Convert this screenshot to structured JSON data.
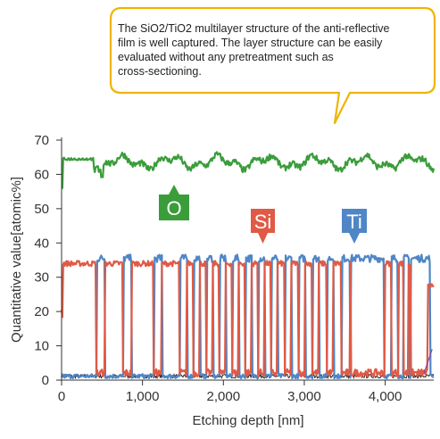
{
  "callout": {
    "lines": [
      "The SiO2/TiO2 multilayer structure of the anti-reflective",
      "film is well captured. The layer structure can be easily",
      "evaluated without any pretreatment such as",
      "cross-sectioning."
    ],
    "border_color": "#f0b400"
  },
  "chart_data": {
    "type": "line",
    "xlabel": "Etching depth [nm]",
    "ylabel": "Quantitative value[atomic%]",
    "xlim": [
      0,
      4600
    ],
    "ylim": [
      0,
      70
    ],
    "x_ticks": [
      0,
      1000,
      2000,
      3000,
      4000
    ],
    "x_tick_labels": [
      "0",
      "1,000",
      "2,000",
      "3,000",
      "4,000"
    ],
    "y_ticks": [
      0,
      10,
      20,
      30,
      40,
      50,
      60,
      70
    ],
    "y_tick_labels": [
      "0",
      "10",
      "20",
      "30",
      "40",
      "50",
      "60",
      "70"
    ],
    "grid": false,
    "series": [
      {
        "name": "O",
        "color": "#3a9d3a",
        "level": 63,
        "range": [
          55,
          68
        ]
      },
      {
        "name": "Si",
        "color": "#e05a45",
        "high": 34,
        "low": 1
      },
      {
        "name": "Ti",
        "color": "#4f86c6",
        "high": 35.5,
        "low": 0.5
      }
    ],
    "si_low_intervals_nm": [
      [
        430,
        530
      ],
      [
        760,
        860
      ],
      [
        1140,
        1230
      ],
      [
        1460,
        1540
      ],
      [
        1630,
        1700
      ],
      [
        1790,
        1860
      ],
      [
        1950,
        2020
      ],
      [
        2110,
        2180
      ],
      [
        2270,
        2340
      ],
      [
        2430,
        2500
      ],
      [
        2590,
        2660
      ],
      [
        2760,
        2830
      ],
      [
        2930,
        3000
      ],
      [
        3100,
        3170
      ],
      [
        3280,
        3350
      ],
      [
        3460,
        3560
      ],
      [
        3580,
        3990
      ],
      [
        4080,
        4160
      ],
      [
        4230,
        4280
      ],
      [
        4320,
        4550
      ]
    ],
    "ti_high_intervals_nm": [
      [
        440,
        530
      ],
      [
        770,
        860
      ],
      [
        1150,
        1240
      ],
      [
        1470,
        1550
      ],
      [
        1640,
        1710
      ],
      [
        1800,
        1870
      ],
      [
        1960,
        2030
      ],
      [
        2120,
        2190
      ],
      [
        2280,
        2350
      ],
      [
        2440,
        2510
      ],
      [
        2600,
        2670
      ],
      [
        2770,
        2840
      ],
      [
        2940,
        3010
      ],
      [
        3110,
        3180
      ],
      [
        3290,
        3360
      ],
      [
        3470,
        3560
      ],
      [
        3580,
        3980
      ],
      [
        4080,
        4150
      ],
      [
        4230,
        4290
      ],
      [
        4320,
        4550
      ]
    ],
    "annotations": {
      "O": "O",
      "Si": "Si",
      "Ti": "Ti"
    }
  }
}
